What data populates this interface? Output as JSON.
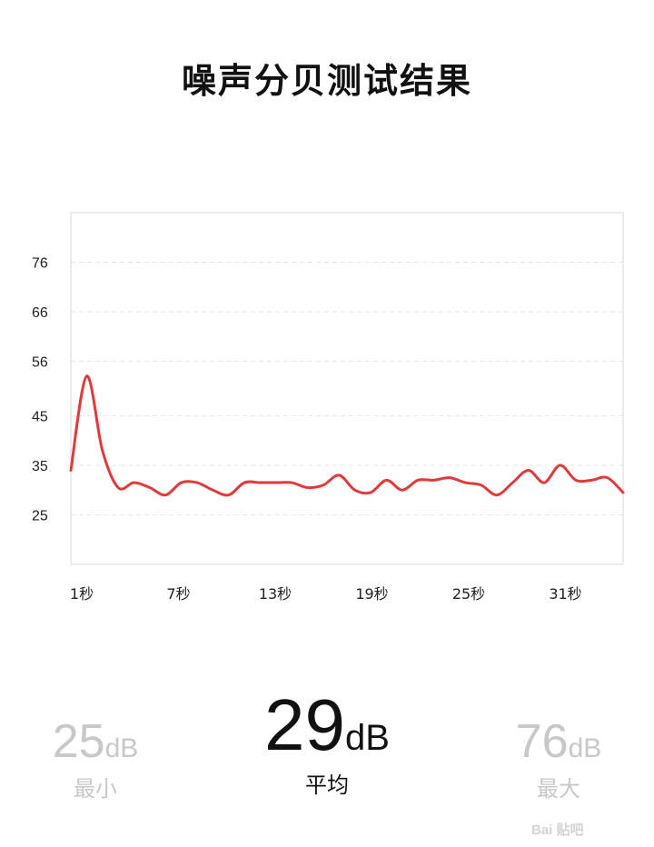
{
  "page": {
    "title": "噪声分贝测试结果"
  },
  "chart_data": {
    "type": "line",
    "title": "",
    "xlabel": "",
    "ylabel": "",
    "x_tick_labels": [
      "1秒",
      "7秒",
      "13秒",
      "19秒",
      "25秒",
      "31秒"
    ],
    "y_tick_labels": [
      "76",
      "66",
      "56",
      "45",
      "35",
      "25"
    ],
    "y_ticks": [
      76,
      66,
      56,
      45,
      35,
      25
    ],
    "ylim": [
      15,
      86
    ],
    "xlim": [
      0,
      35
    ],
    "grid": true,
    "line_color": "#e03a3a",
    "series": [
      {
        "name": "",
        "x": [
          0,
          1,
          2,
          3,
          4,
          5,
          6,
          7,
          8,
          9,
          10,
          11,
          12,
          13,
          14,
          15,
          16,
          17,
          18,
          19,
          20,
          21,
          22,
          23,
          24,
          25,
          26,
          27,
          28,
          29,
          30,
          31,
          32,
          33,
          34,
          35
        ],
        "values": [
          34,
          53,
          38,
          30.5,
          31.5,
          30.5,
          29,
          31.5,
          31.5,
          30,
          29,
          31.5,
          31.5,
          31.5,
          31.5,
          30.5,
          31,
          33,
          30,
          29.5,
          32,
          30,
          32,
          32,
          32.5,
          31.5,
          31,
          29,
          31.5,
          34,
          31.5,
          35,
          32,
          32,
          32.5,
          29.5
        ]
      }
    ]
  },
  "stats": {
    "min": {
      "value": "25",
      "unit": "dB",
      "label": "最小"
    },
    "avg": {
      "value": "29",
      "unit": "dB",
      "label": "平均"
    },
    "max": {
      "value": "76",
      "unit": "dB",
      "label": "最大"
    }
  },
  "watermark": "Bai 贴吧"
}
